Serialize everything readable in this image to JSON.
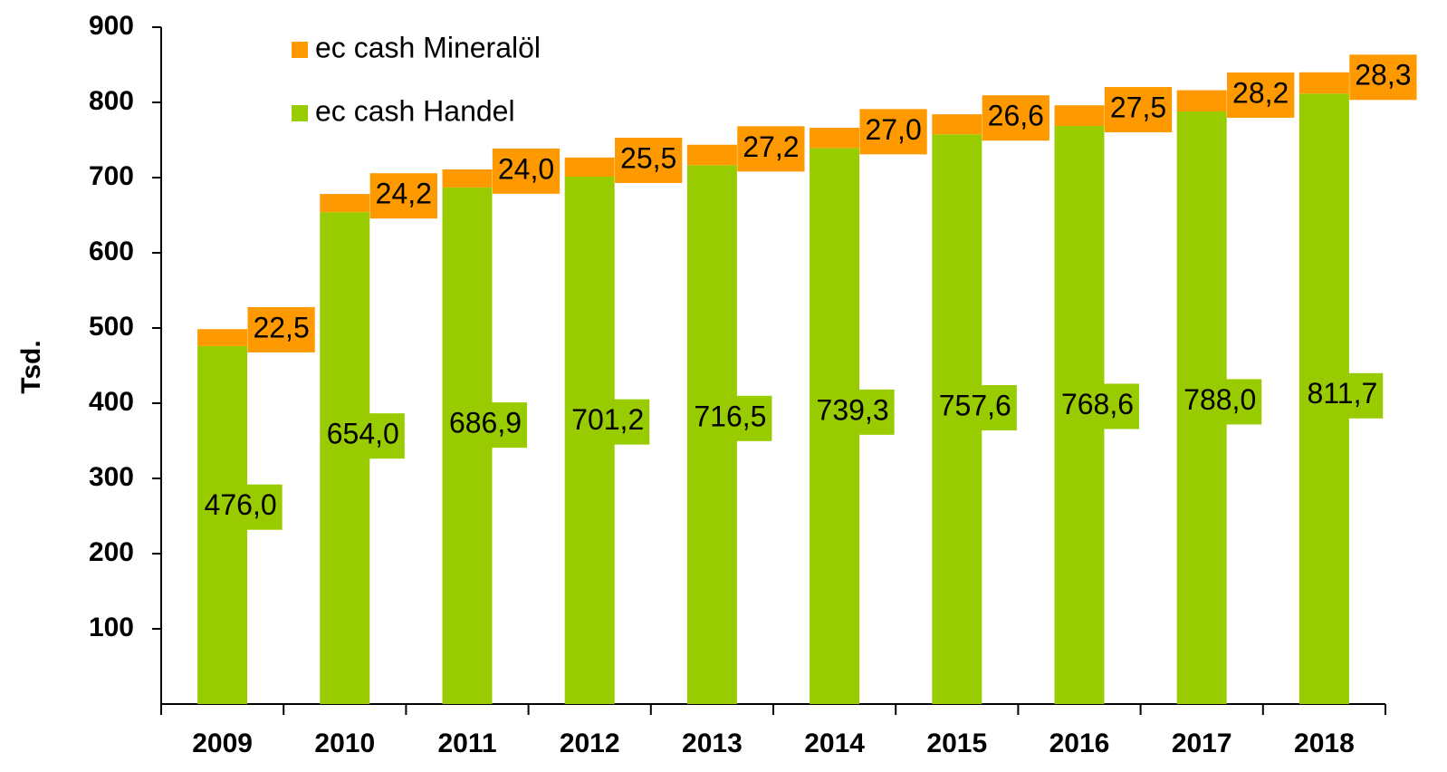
{
  "chart_data": {
    "type": "stacked-bar",
    "y_axis_label": "Tsd.",
    "categories": [
      "2009",
      "2010",
      "2011",
      "2012",
      "2013",
      "2014",
      "2015",
      "2016",
      "2017",
      "2018"
    ],
    "series": [
      {
        "name": "ec cash Handel",
        "color": "#99cc00",
        "values": [
          476.0,
          654.0,
          686.9,
          701.2,
          716.5,
          739.3,
          757.6,
          768.6,
          788.0,
          811.7
        ],
        "value_labels": [
          "476,0",
          "654,0",
          "686,9",
          "701,2",
          "716,5",
          "739,3",
          "757,6",
          "768,6",
          "788,0",
          "811,7"
        ]
      },
      {
        "name": "ec cash Mineralöl",
        "color": "#ff9900",
        "values": [
          22.5,
          24.2,
          24.0,
          25.5,
          27.2,
          27.0,
          26.6,
          27.5,
          28.2,
          28.3
        ],
        "value_labels": [
          "22,5",
          "24,2",
          "24,0",
          "25,5",
          "27,2",
          "27,0",
          "26,6",
          "27,5",
          "28,2",
          "28,3"
        ]
      }
    ],
    "ylim": [
      0,
      900
    ],
    "yticks": [
      100,
      200,
      300,
      400,
      500,
      600,
      700,
      800,
      900
    ],
    "grid": false
  }
}
